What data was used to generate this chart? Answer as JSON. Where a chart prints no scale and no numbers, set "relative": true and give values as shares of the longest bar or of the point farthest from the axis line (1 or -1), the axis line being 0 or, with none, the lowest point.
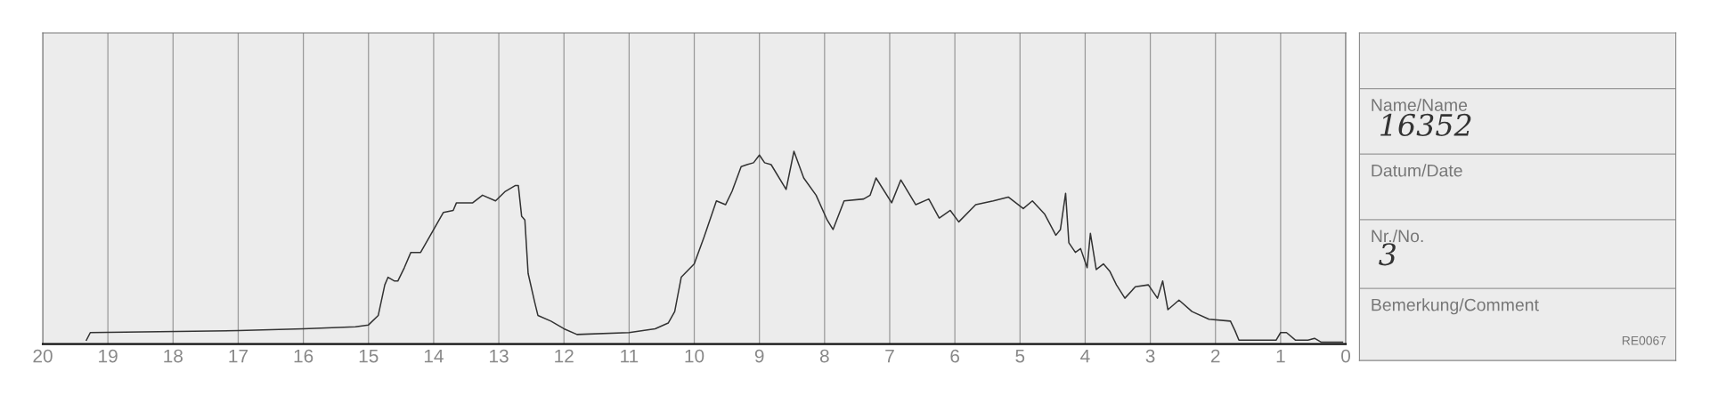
{
  "chart_data": [
    {
      "type": "line",
      "relative": true,
      "color": "#333333",
      "xlim": [
        20,
        0
      ],
      "xticks": [
        20,
        19,
        18,
        17,
        16,
        15,
        14,
        13,
        12,
        11,
        10,
        9,
        8,
        7,
        6,
        5,
        4,
        3,
        2,
        1,
        0
      ],
      "grid": "x",
      "legend": false,
      "marker": "none",
      "line_style": "solid",
      "x": [
        19.33,
        19.27,
        17,
        16,
        15.2,
        15,
        14.85,
        14.75,
        14.7,
        14.6,
        14.55,
        14.45,
        14.35,
        14.2,
        14.05,
        13.85,
        13.7,
        13.65,
        13.4,
        13.25,
        13.05,
        12.9,
        12.75,
        12.7,
        12.65,
        12.6,
        12.55,
        12.45,
        12.4,
        12.2,
        12.0,
        11.8,
        11.0,
        10.6,
        10.4,
        10.3,
        10.2,
        10.0,
        9.85,
        9.66,
        9.52,
        9.42,
        9.28,
        9.19,
        9.09,
        9.0,
        8.92,
        8.82,
        8.59,
        8.47,
        8.32,
        8.13,
        7.96,
        7.87,
        7.7,
        7.4,
        7.3,
        7.21,
        6.97,
        6.83,
        6.6,
        6.4,
        6.24,
        6.07,
        5.94,
        5.68,
        5.41,
        5.18,
        4.95,
        4.81,
        4.62,
        4.45,
        4.38,
        4.3,
        4.25,
        4.15,
        4.07,
        3.97,
        3.92,
        3.83,
        3.72,
        3.62,
        3.52,
        3.39,
        3.23,
        3.03,
        2.89,
        2.81,
        2.73,
        2.56,
        2.36,
        2.1,
        1.77,
        1.7,
        1.64,
        1.07,
        1.0,
        0.91,
        0.77,
        0.58,
        0.48,
        0.38,
        0.05
      ],
      "values": [
        0.01,
        0.05,
        0.06,
        0.07,
        0.08,
        0.09,
        0.14,
        0.3,
        0.34,
        0.32,
        0.32,
        0.39,
        0.47,
        0.47,
        0.56,
        0.68,
        0.69,
        0.73,
        0.73,
        0.77,
        0.74,
        0.79,
        0.82,
        0.82,
        0.66,
        0.64,
        0.36,
        0.21,
        0.14,
        0.11,
        0.07,
        0.04,
        0.05,
        0.07,
        0.1,
        0.16,
        0.34,
        0.41,
        0.55,
        0.74,
        0.72,
        0.79,
        0.92,
        0.93,
        0.94,
        0.98,
        0.94,
        0.93,
        0.8,
        1.0,
        0.86,
        0.77,
        0.64,
        0.59,
        0.74,
        0.75,
        0.77,
        0.86,
        0.73,
        0.85,
        0.72,
        0.75,
        0.65,
        0.69,
        0.63,
        0.72,
        0.74,
        0.76,
        0.7,
        0.74,
        0.67,
        0.56,
        0.59,
        0.78,
        0.52,
        0.47,
        0.49,
        0.39,
        0.57,
        0.38,
        0.41,
        0.37,
        0.3,
        0.23,
        0.29,
        0.3,
        0.23,
        0.32,
        0.17,
        0.22,
        0.16,
        0.12,
        0.11,
        0.06,
        0.01,
        0.01,
        0.05,
        0.05,
        0.01,
        0.01,
        0.02,
        0,
        0
      ]
    },
    {
      "type": "other",
      "annotations": [
        "Name/Name",
        "16352",
        "Datum/Date",
        "Nr./No.",
        "3",
        "Bemerkung/Comment",
        "RE0067"
      ]
    }
  ]
}
